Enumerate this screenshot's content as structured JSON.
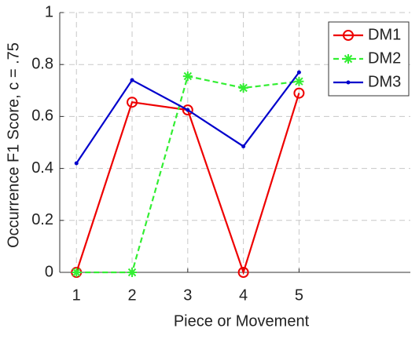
{
  "chart_data": {
    "type": "line",
    "x_label": "Piece or Movement",
    "y_label": "Occurrence F1 Score, c = .75",
    "x": [
      1,
      2,
      3,
      4,
      5
    ],
    "series": [
      {
        "name": "DM1",
        "color": "#ee0000",
        "marker": "circle",
        "linestyle": "solid",
        "values": [
          0,
          0.655,
          0.625,
          0,
          0.69
        ]
      },
      {
        "name": "DM2",
        "color": "#33ee33",
        "marker": "asterisk",
        "linestyle": "dashed",
        "values": [
          0,
          0,
          0.755,
          0.71,
          0.735
        ]
      },
      {
        "name": "DM3",
        "color": "#0000cc",
        "marker": "point",
        "linestyle": "solid",
        "values": [
          0.42,
          0.74,
          0.625,
          0.485,
          0.77
        ]
      }
    ],
    "xlim": [
      0.7,
      7
    ],
    "xticks": [
      1,
      2,
      3,
      4,
      5
    ],
    "ylim": [
      0,
      1
    ],
    "yticks": [
      0,
      0.2,
      0.4,
      0.6,
      0.8,
      1
    ],
    "grid": true,
    "legend": "top-right"
  }
}
